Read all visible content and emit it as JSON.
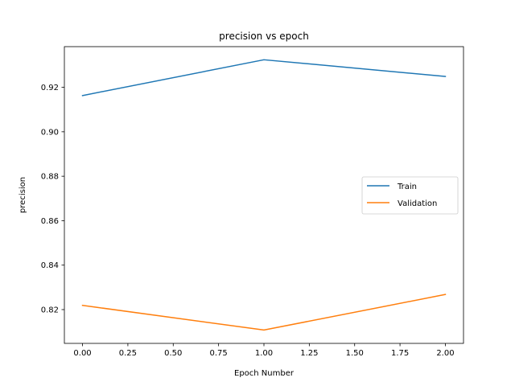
{
  "chart_data": {
    "type": "line",
    "title": "precision vs epoch",
    "xlabel": "Epoch Number",
    "ylabel": "precision",
    "x": [
      0.0,
      1.0,
      2.0
    ],
    "xlim": [
      -0.1,
      2.1
    ],
    "ylim": [
      0.8048,
      0.9383
    ],
    "xticks": [
      0.0,
      0.25,
      0.5,
      0.75,
      1.0,
      1.25,
      1.5,
      1.75,
      2.0
    ],
    "xtick_labels": [
      "0.00",
      "0.25",
      "0.50",
      "0.75",
      "1.00",
      "1.25",
      "1.50",
      "1.75",
      "2.00"
    ],
    "yticks": [
      0.82,
      0.84,
      0.86,
      0.88,
      0.9,
      0.92
    ],
    "ytick_labels": [
      "0.82",
      "0.84",
      "0.86",
      "0.88",
      "0.90",
      "0.92"
    ],
    "grid": false,
    "legend_position": "center-right",
    "series": [
      {
        "name": "Train",
        "color": "#1f77b4",
        "values": [
          0.9163,
          0.9324,
          0.9249
        ]
      },
      {
        "name": "Validation",
        "color": "#ff7f0e",
        "values": [
          0.8219,
          0.8108,
          0.8268
        ]
      }
    ]
  }
}
